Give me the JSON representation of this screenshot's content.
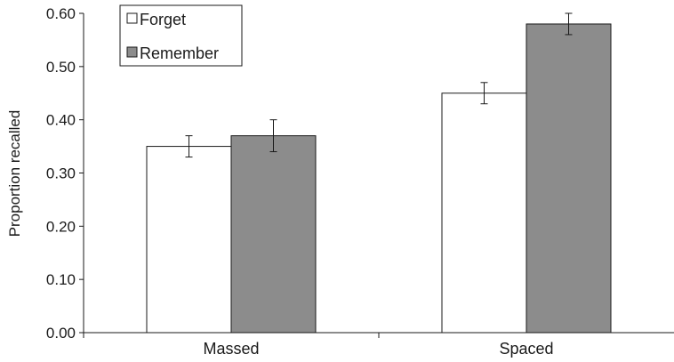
{
  "chart_data": {
    "type": "bar",
    "title": "",
    "xlabel": "",
    "ylabel": "Proportion recalled",
    "categories": [
      "Massed",
      "Spaced"
    ],
    "series": [
      {
        "name": "Forget",
        "values": [
          0.35,
          0.45
        ],
        "errors": [
          0.02,
          0.02
        ],
        "color": "#ffffff"
      },
      {
        "name": "Remember",
        "values": [
          0.37,
          0.58
        ],
        "errors": [
          0.03,
          0.02
        ],
        "color": "#8c8c8c"
      }
    ],
    "ylim": [
      0,
      0.6
    ],
    "yticks": [
      "0.00",
      "0.10",
      "0.20",
      "0.30",
      "0.40",
      "0.50",
      "0.60"
    ],
    "grid": false,
    "legend_position": "top-left"
  },
  "colors": {
    "axis": "#1a1a1a",
    "bar_stroke": "#1a1a1a"
  }
}
